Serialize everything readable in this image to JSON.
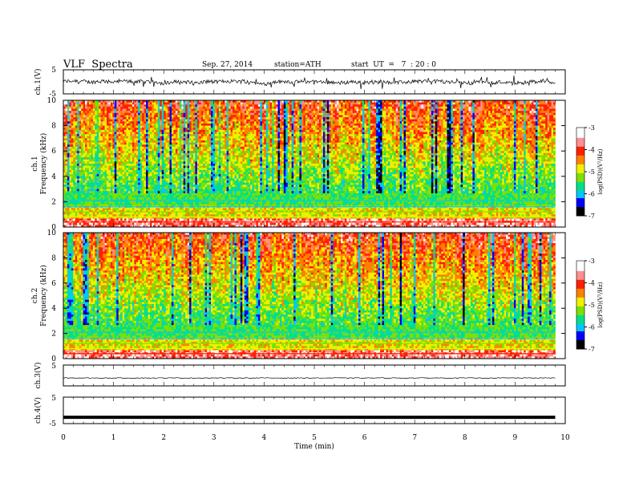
{
  "header": {
    "title": "VLF  Spectra",
    "date": "Sep. 27, 2014",
    "station": "station=ATH",
    "start": "start  UT  =   7  : 20 : 0"
  },
  "chart_data": [
    {
      "type": "line",
      "panel": "ch1-waveform",
      "ylabel": "ch.1(V)",
      "ylim": [
        -5,
        5
      ],
      "yticks": [
        "5",
        "-5"
      ],
      "xlim": [
        0,
        10
      ],
      "description_values": "noisy waveform centered near 0 V, amplitude about ±1.5 V, over 0–9.8 min"
    },
    {
      "type": "heatmap",
      "panel": "ch1-spectrogram",
      "ylabel": "ch.1\nFrequency (kHz)",
      "ylabel_line1": "ch.1",
      "ylabel_line2": "Frequency (kHz)",
      "ylim": [
        0,
        10
      ],
      "yticks": [
        "0",
        "2",
        "4",
        "6",
        "8",
        "10"
      ],
      "xlim": [
        0,
        9.8
      ],
      "colorbar": {
        "label": "log(PSD)(V²/Hz)",
        "range": [
          -7,
          -3
        ],
        "ticks": [
          "-3",
          "-4",
          "-5",
          "-6",
          "-7"
        ]
      }
    },
    {
      "type": "heatmap",
      "panel": "ch2-spectrogram",
      "ylabel_line1": "ch.2",
      "ylabel_line2": "Frequency (kHz)",
      "ylim": [
        0,
        10
      ],
      "yticks": [
        "0",
        "2",
        "4",
        "6",
        "8",
        "10"
      ],
      "xlim": [
        0,
        9.8
      ],
      "colorbar": {
        "label": "log(PSD)(V²/Hz)",
        "range": [
          -7,
          -3
        ],
        "ticks": [
          "-3",
          "-4",
          "-5",
          "-6",
          "-7"
        ]
      }
    },
    {
      "type": "line",
      "panel": "ch3-waveform",
      "ylabel": "ch.3(V)",
      "ylim": [
        -5,
        5
      ],
      "yticks": [
        "5"
      ],
      "value": -1.2
    },
    {
      "type": "line",
      "panel": "ch4-waveform",
      "ylabel": "ch.4(V)",
      "ylim": [
        -5,
        5
      ],
      "yticks": [
        "5",
        "-5"
      ],
      "value": -2.6
    }
  ],
  "xaxis": {
    "label": "Time  (min)",
    "ticks": [
      "0",
      "1",
      "2",
      "3",
      "4",
      "5",
      "6",
      "7",
      "8",
      "9",
      "10"
    ]
  },
  "colors": {
    "waveform": "#000000",
    "spectrogram_scale": [
      "#000000",
      "#0000ff",
      "#00c8ff",
      "#00e08a",
      "#7de000",
      "#f0f000",
      "#ff8000",
      "#ff2000",
      "#ff9090",
      "#ffffff"
    ]
  }
}
